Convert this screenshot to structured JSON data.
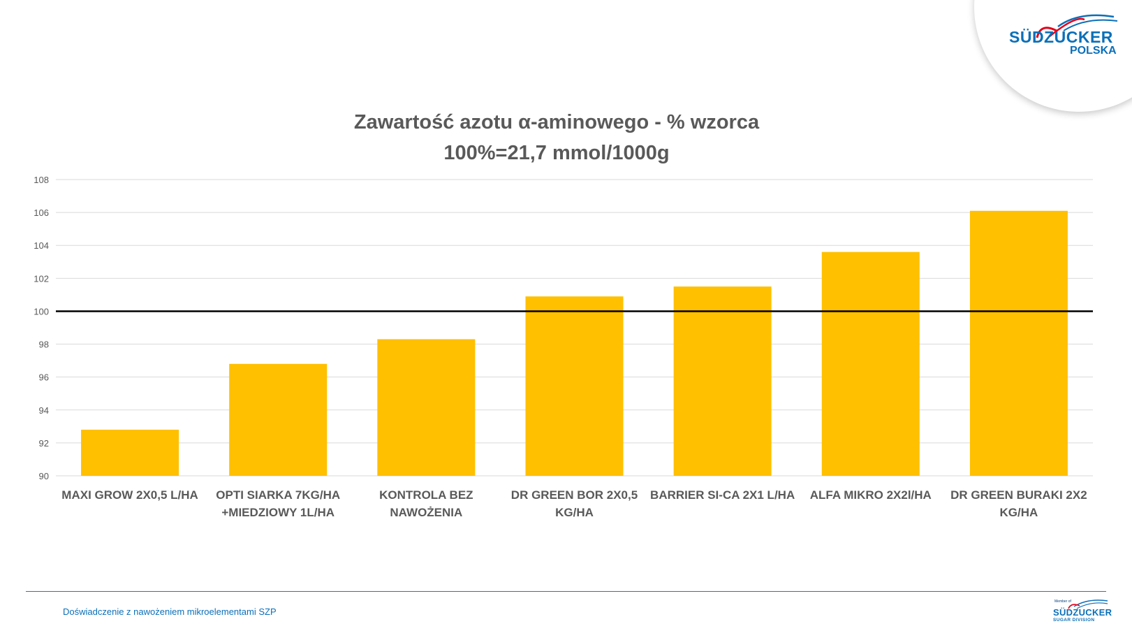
{
  "logo": {
    "brand": "SÜDZUCKER",
    "sub": "POLSKA",
    "blue": "#0a6fb8",
    "red": "#e2001a"
  },
  "footer": {
    "text": "Doświadczenie z nawożeniem mikroelementami SZP",
    "logo_member": "Member of",
    "logo_brand": "SÜDZUCKER",
    "logo_division": "SUGAR  DIVISION"
  },
  "chart_data": {
    "type": "bar",
    "title": "Zawartość azotu α-aminowego - % wzorca",
    "subtitle": "100%=21,7 mmol/1000g",
    "categories": [
      [
        "MAXI GROW 2X0,5 L/HA"
      ],
      [
        "OPTI SIARKA 7KG/HA",
        "+MIEDZIOWY 1L/HA"
      ],
      [
        "KONTROLA BEZ",
        "NAWOŻENIA"
      ],
      [
        "DR GREEN BOR 2X0,5",
        "KG/HA"
      ],
      [
        "BARRIER SI-CA 2X1 L/HA"
      ],
      [
        "ALFA MIKRO 2X2l/HA"
      ],
      [
        "DR GREEN BURAKI 2X2",
        "KG/HA"
      ]
    ],
    "values": [
      92.8,
      96.8,
      98.3,
      100.9,
      101.5,
      103.6,
      106.1
    ],
    "reference_line": 100,
    "ylim": [
      90,
      108
    ],
    "yticks": [
      "90",
      "92",
      "94",
      "96",
      "98",
      "100",
      "102",
      "104",
      "106",
      "108"
    ],
    "grid": true,
    "bar_color": "#ffc000",
    "reference_color": "#000000",
    "text_color": "#595959"
  }
}
